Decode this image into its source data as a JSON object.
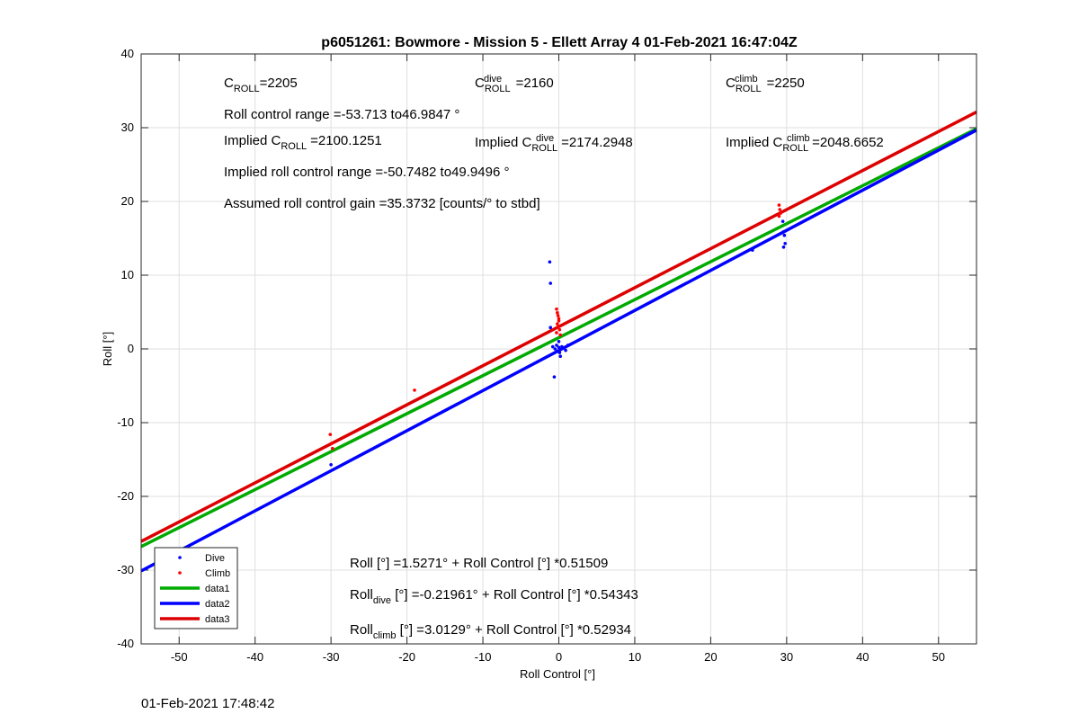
{
  "chart_data": {
    "type": "scatter",
    "title": "p6051261: Bowmore - Mission 5 - Ellett Array 4 01-Feb-2021 16:47:04Z",
    "xlabel": "Roll Control [°]",
    "ylabel": "Roll [°]",
    "xlim": [
      -55,
      55
    ],
    "ylim": [
      -40,
      40
    ],
    "xticks": [
      -50,
      -40,
      -30,
      -20,
      -10,
      0,
      10,
      20,
      30,
      40,
      50
    ],
    "yticks": [
      -40,
      -30,
      -20,
      -10,
      0,
      10,
      20,
      30,
      40
    ],
    "grid": true,
    "legend_position": "bottom-left",
    "series": [
      {
        "name": "Dive",
        "kind": "points",
        "color": "#0000ff",
        "points": [
          [
            -1.2,
            11.8
          ],
          [
            -1.1,
            8.9
          ],
          [
            -1.1,
            2.9
          ],
          [
            -0.8,
            0.3
          ],
          [
            -0.5,
            0.0
          ],
          [
            -0.3,
            0.5
          ],
          [
            -0.2,
            -0.3
          ],
          [
            0,
            1.0
          ],
          [
            0,
            0.2
          ],
          [
            0.1,
            -0.5
          ],
          [
            0.2,
            -1.0
          ],
          [
            0.4,
            0.3
          ],
          [
            0.6,
            0.1
          ],
          [
            0.9,
            -0.2
          ],
          [
            1.2,
            0.5
          ],
          [
            -0.6,
            -3.8
          ],
          [
            -30,
            -15.7
          ],
          [
            25.5,
            13.4
          ],
          [
            29.5,
            17.3
          ],
          [
            29.6,
            15.9
          ],
          [
            29.7,
            15.4
          ],
          [
            29.8,
            14.3
          ],
          [
            29.6,
            13.8
          ]
        ]
      },
      {
        "name": "Climb",
        "kind": "points",
        "color": "#ff0000",
        "points": [
          [
            -0.3,
            5.4
          ],
          [
            -0.2,
            4.9
          ],
          [
            -0.1,
            4.5
          ],
          [
            0,
            4.1
          ],
          [
            0,
            3.8
          ],
          [
            -0.2,
            3.4
          ],
          [
            -0.1,
            3.0
          ],
          [
            0.1,
            2.6
          ],
          [
            -0.3,
            2.2
          ],
          [
            0.2,
            1.9
          ],
          [
            -19,
            -5.6
          ],
          [
            -30.1,
            -11.6
          ],
          [
            -29.9,
            -12.8
          ],
          [
            -29.8,
            -13.5
          ],
          [
            29.0,
            19.5
          ],
          [
            29.1,
            18.9
          ],
          [
            29.2,
            18.4
          ],
          [
            29.0,
            18.0
          ]
        ]
      },
      {
        "name": "data1",
        "kind": "line",
        "color": "#00aa00",
        "intercept": 1.5271,
        "slope": 0.51509
      },
      {
        "name": "data2",
        "kind": "line",
        "color": "#0000ff",
        "intercept": -0.21961,
        "slope": 0.54343
      },
      {
        "name": "data3",
        "kind": "line",
        "color": "#dd0000",
        "intercept": 3.0129,
        "slope": 0.52934
      }
    ],
    "annotations": {
      "c_roll": {
        "base": "C",
        "sub": "ROLL",
        "value": "=2205"
      },
      "c_roll_dive": {
        "base": "C",
        "sup": "dive",
        "sub": "ROLL",
        "value": "=2160"
      },
      "c_roll_climb": {
        "base": "C",
        "sup": "climb",
        "sub": "ROLL",
        "value": "=2250"
      },
      "roll_control_range": "Roll control range =-53.713 to46.9847 °",
      "implied_c_roll": {
        "prefix": "Implied C",
        "sub": "ROLL",
        "value": "=2100.1251"
      },
      "implied_c_roll_dive": {
        "prefix": "Implied C",
        "sup": "dive",
        "sub": "ROLL",
        "value": "=2174.2948"
      },
      "implied_c_roll_climb": {
        "prefix": "Implied C",
        "sup": "climb",
        "sub": "ROLL",
        "value": "=2048.6652"
      },
      "implied_range": "Implied roll control range =-50.7482 to49.9496 °",
      "gain": "Assumed roll control gain =35.3732 [counts/° to stbd]",
      "fit_all": "Roll [°] =1.5271° + Roll Control [°] *0.51509",
      "fit_dive": {
        "base": "Roll",
        "sub": "dive",
        "rest": " [°] =-0.21961° + Roll Control [°] *0.54343"
      },
      "fit_climb": {
        "base": "Roll",
        "sub": "climb",
        "rest": " [°] =3.0129° + Roll Control [°] *0.52934"
      }
    }
  },
  "footer_timestamp": "01-Feb-2021 17:48:42"
}
